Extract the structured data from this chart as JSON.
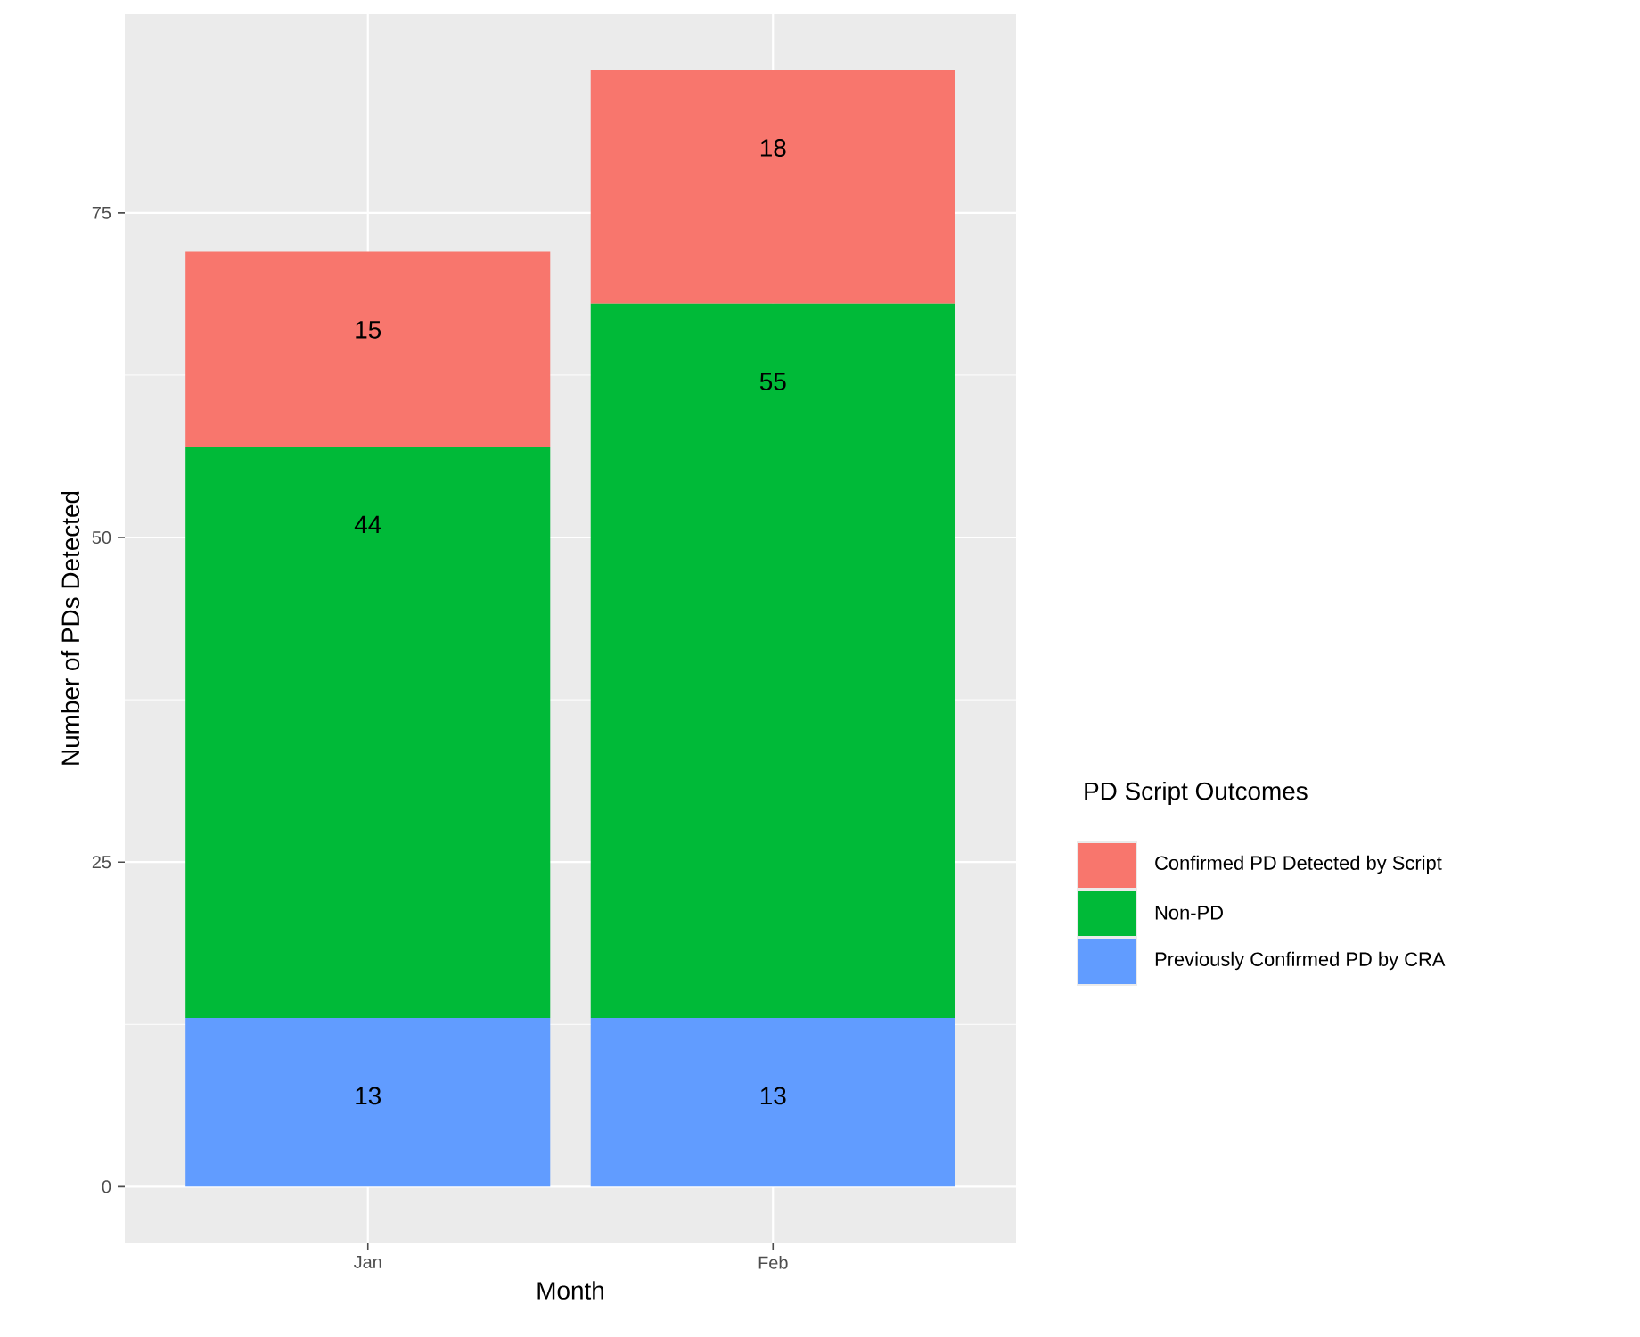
{
  "chart_data": {
    "type": "bar",
    "stacked": true,
    "xlabel": "Month",
    "ylabel": "Number of PDs Detected",
    "legend_title": "PD Script Outcomes",
    "categories": [
      "Jan",
      "Feb"
    ],
    "series": [
      {
        "name": "Previously Confirmed PD by CRA",
        "color": "#619cff",
        "values": [
          13,
          13
        ]
      },
      {
        "name": "Non-PD",
        "color": "#00ba38",
        "values": [
          44,
          55
        ]
      },
      {
        "name": "Confirmed PD Detected by Script",
        "color": "#f8766d",
        "values": [
          15,
          18
        ]
      }
    ],
    "ylim": [
      -4.3,
      90.3
    ],
    "yticks": [
      0,
      25,
      50,
      75
    ],
    "grid": true,
    "legend": "right",
    "data_labels": true
  }
}
